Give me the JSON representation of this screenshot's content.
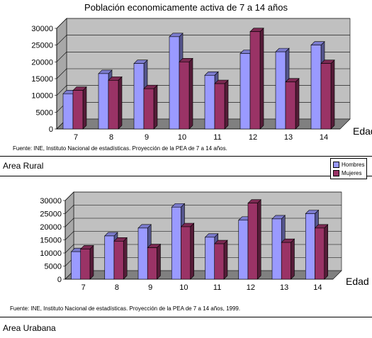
{
  "title": "Población economicamente activa de 7 a 14 años",
  "colors": {
    "hombres": "#9a9aff",
    "mujeres": "#9a3366",
    "wall": "#c0c0c0",
    "floor": "#808080"
  },
  "legend": {
    "hombres": "Hombres",
    "mujeres": "Mujeres"
  },
  "chart_data": [
    {
      "type": "bar",
      "categories": [
        "7",
        "8",
        "9",
        "10",
        "11",
        "12",
        "13",
        "14"
      ],
      "series": [
        {
          "name": "Hombres",
          "values": [
            10500,
            16500,
            19500,
            27500,
            16000,
            22500,
            23000,
            25000
          ]
        },
        {
          "name": "Mujeres",
          "values": [
            11500,
            14500,
            12000,
            20000,
            13500,
            29000,
            14000,
            19500
          ]
        }
      ],
      "yticks": [
        "0",
        "5000",
        "10000",
        "15000",
        "20000",
        "25000",
        "30000"
      ],
      "ylim": [
        0,
        30000
      ],
      "xlabel": "Edad",
      "source": "Fuente: INE, Instituto Nacional de estadísticas. Proyección de la PEA de 7 a 14 años.",
      "area": "Area Rural"
    },
    {
      "type": "bar",
      "categories": [
        "7",
        "8",
        "9",
        "10",
        "11",
        "12",
        "13",
        "14"
      ],
      "series": [
        {
          "name": "Hombres",
          "values": [
            10500,
            16500,
            19500,
            27500,
            16000,
            22500,
            23000,
            25000
          ]
        },
        {
          "name": "Mujeres",
          "values": [
            11500,
            14500,
            12000,
            20000,
            13500,
            29000,
            14000,
            19500
          ]
        }
      ],
      "yticks": [
        "0",
        "5000",
        "10000",
        "15000",
        "20000",
        "25000",
        "30000"
      ],
      "ylim": [
        0,
        30000
      ],
      "xlabel": "Edad",
      "source": "Fuente: INE, Instituto Nacional de estadísticas. Proyección de la PEA de 7 a 14 años, 1999.",
      "area": "Area Urabana"
    }
  ]
}
